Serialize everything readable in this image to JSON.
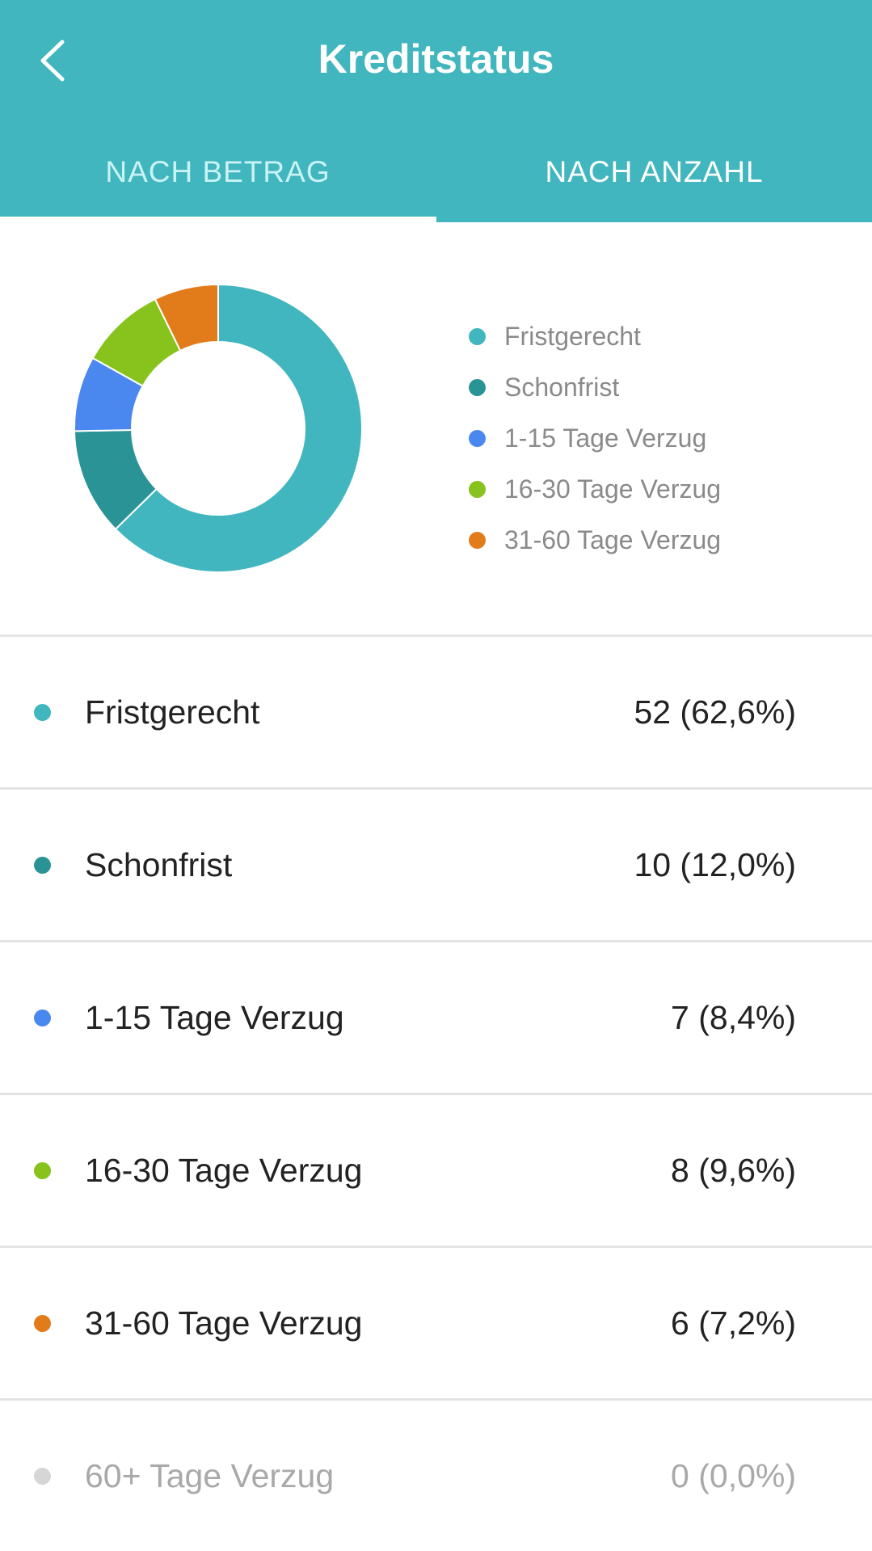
{
  "header": {
    "title": "Kreditstatus",
    "tabs": [
      {
        "label": "NACH BETRAG",
        "selected": false
      },
      {
        "label": "NACH ANZAHL",
        "selected": true
      }
    ]
  },
  "legend": {
    "items": [
      {
        "label": "Fristgerecht",
        "color": "#42b6be"
      },
      {
        "label": "Schonfrist",
        "color": "#2a9396"
      },
      {
        "label": "1-15 Tage Verzug",
        "color": "#4a88ef"
      },
      {
        "label": "16-30 Tage Verzug",
        "color": "#88c21d"
      },
      {
        "label": "31-60 Tage Verzug",
        "color": "#e27b1a"
      }
    ]
  },
  "chart_data": {
    "type": "pie",
    "donut": true,
    "categories": [
      "Fristgerecht",
      "Schonfrist",
      "1-15 Tage Verzug",
      "16-30 Tage Verzug",
      "31-60 Tage Verzug",
      "60+ Tage Verzug"
    ],
    "values": [
      52,
      10,
      7,
      8,
      6,
      0
    ],
    "colors": [
      "#42b6be",
      "#2a9396",
      "#4a88ef",
      "#88c21d",
      "#e27b1a",
      "#d6d6d6"
    ],
    "legend_position": "right"
  },
  "rows": [
    {
      "label": "Fristgerecht",
      "value": "52 (62,6%)",
      "color": "#42b6be",
      "muted": false
    },
    {
      "label": "Schonfrist",
      "value": "10 (12,0%)",
      "color": "#2a9396",
      "muted": false
    },
    {
      "label": "1-15 Tage Verzug",
      "value": "7 (8,4%)",
      "color": "#4a88ef",
      "muted": false
    },
    {
      "label": "16-30 Tage Verzug",
      "value": "8 (9,6%)",
      "color": "#88c21d",
      "muted": false
    },
    {
      "label": "31-60 Tage Verzug",
      "value": "6 (7,2%)",
      "color": "#e27b1a",
      "muted": false
    },
    {
      "label": "60+ Tage Verzug",
      "value": "0 (0,0%)",
      "color": "#d6d6d6",
      "muted": true
    }
  ]
}
